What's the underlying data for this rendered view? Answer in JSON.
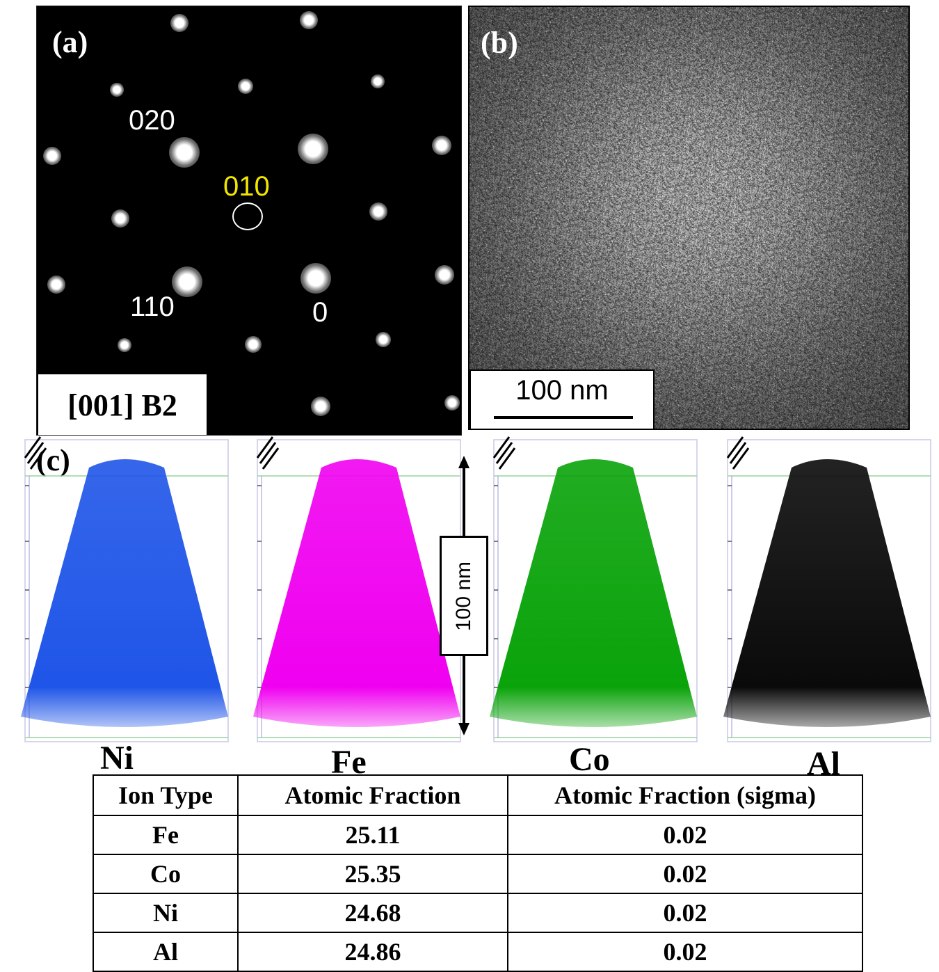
{
  "panel_a": {
    "letter": "(a)",
    "indices": {
      "i020": "020",
      "i010": "010",
      "i110": "110",
      "i0": "0"
    },
    "zone_axis": "[001] B2"
  },
  "panel_b": {
    "letter": "(b)",
    "scale_bar": "100 nm"
  },
  "panel_c": {
    "letter": "(c)",
    "scale_bar": "100 nm",
    "maps": [
      {
        "element": "Ni",
        "color": "#1f55e8"
      },
      {
        "element": "Fe",
        "color": "#f000f0"
      },
      {
        "element": "Co",
        "color": "#0aa30a"
      },
      {
        "element": "Al",
        "color": "#0a0a0a"
      }
    ]
  },
  "table": {
    "headers": [
      "Ion Type",
      "Atomic Fraction",
      "Atomic Fraction (sigma)"
    ],
    "rows": [
      [
        "Fe",
        "25.11",
        "0.02"
      ],
      [
        "Co",
        "25.35",
        "0.02"
      ],
      [
        "Ni",
        "24.68",
        "0.02"
      ],
      [
        "Al",
        "24.86",
        "0.02"
      ]
    ]
  }
}
